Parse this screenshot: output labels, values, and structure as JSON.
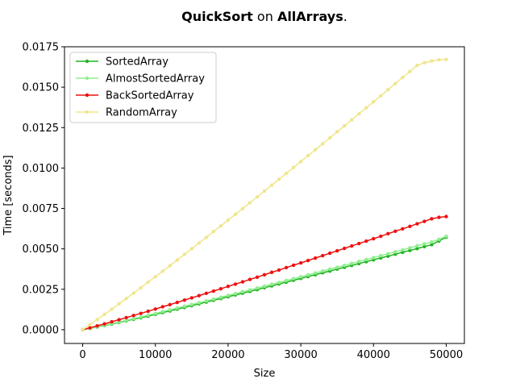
{
  "chart_data": {
    "type": "line",
    "title": {
      "parts": [
        {
          "text": "QuickSort",
          "bold": true
        },
        {
          "text": " on ",
          "bold": false
        },
        {
          "text": "AllArrays",
          "bold": true
        },
        {
          "text": ".",
          "bold": false
        }
      ]
    },
    "xlabel": "Size",
    "ylabel": "Time [seconds]",
    "xlim": [
      -2500,
      52500
    ],
    "ylim": [
      -0.00085,
      0.0175
    ],
    "xticks": [
      0,
      10000,
      20000,
      30000,
      40000,
      50000
    ],
    "xtick_labels": [
      "0",
      "10000",
      "20000",
      "30000",
      "40000",
      "50000"
    ],
    "yticks": [
      0.0,
      0.0025,
      0.005,
      0.0075,
      0.01,
      0.0125,
      0.015,
      0.0175
    ],
    "ytick_labels": [
      "0.0000",
      "0.0025",
      "0.0050",
      "0.0075",
      "0.0100",
      "0.0125",
      "0.0150",
      "0.0175"
    ],
    "grid": false,
    "legend_position": "top-left",
    "x": [
      0,
      1000,
      2000,
      3000,
      4000,
      5000,
      6000,
      7000,
      8000,
      9000,
      10000,
      11000,
      12000,
      13000,
      14000,
      15000,
      16000,
      17000,
      18000,
      19000,
      20000,
      21000,
      22000,
      23000,
      24000,
      25000,
      26000,
      27000,
      28000,
      29000,
      30000,
      31000,
      32000,
      33000,
      34000,
      35000,
      36000,
      37000,
      38000,
      39000,
      40000,
      41000,
      42000,
      43000,
      44000,
      45000,
      46000,
      47000,
      48000,
      49000,
      50000
    ],
    "series": [
      {
        "name": "SortedArray",
        "color": "#22b422",
        "values": [
          0.0,
          8e-05,
          0.00017,
          0.00026,
          0.00035,
          0.00045,
          0.00055,
          0.00065,
          0.00074,
          0.00084,
          0.00095,
          0.00106,
          0.00116,
          0.00127,
          0.00138,
          0.00149,
          0.0016,
          0.00171,
          0.00182,
          0.00193,
          0.00204,
          0.00215,
          0.00226,
          0.00237,
          0.00248,
          0.0026,
          0.00271,
          0.00283,
          0.00294,
          0.00306,
          0.00317,
          0.00329,
          0.0034,
          0.00352,
          0.00363,
          0.00375,
          0.00386,
          0.00398,
          0.00409,
          0.00421,
          0.00432,
          0.00444,
          0.00455,
          0.00467,
          0.00479,
          0.0049,
          0.00502,
          0.00514,
          0.00526,
          0.00549,
          0.00572
        ]
      },
      {
        "name": "AlmostSortedArray",
        "color": "#90ee90",
        "values": [
          0.0,
          9e-05,
          0.00018,
          0.00028,
          0.00038,
          0.00048,
          0.00058,
          0.00069,
          0.00079,
          0.0009,
          0.001,
          0.00112,
          0.00123,
          0.00134,
          0.00145,
          0.00156,
          0.00167,
          0.00178,
          0.00189,
          0.00201,
          0.00212,
          0.00223,
          0.00235,
          0.00246,
          0.00258,
          0.00269,
          0.00281,
          0.00292,
          0.00304,
          0.00316,
          0.00327,
          0.00339,
          0.00351,
          0.00363,
          0.00375,
          0.00386,
          0.00398,
          0.0041,
          0.00422,
          0.00434,
          0.00446,
          0.00458,
          0.0047,
          0.00482,
          0.00494,
          0.00506,
          0.00519,
          0.00531,
          0.00543,
          0.00559,
          0.00578
        ]
      },
      {
        "name": "BackSortedArray",
        "color": "#ee1111",
        "values": [
          0.0,
          0.00012,
          0.00024,
          0.00036,
          0.00049,
          0.00062,
          0.00075,
          0.00088,
          0.00101,
          0.00114,
          0.00128,
          0.00142,
          0.00155,
          0.00169,
          0.00183,
          0.00197,
          0.00211,
          0.00225,
          0.00239,
          0.00253,
          0.00268,
          0.00282,
          0.00296,
          0.00311,
          0.00325,
          0.0034,
          0.00355,
          0.00369,
          0.00384,
          0.00399,
          0.00413,
          0.00428,
          0.00443,
          0.00458,
          0.00473,
          0.00488,
          0.00503,
          0.00518,
          0.00533,
          0.00548,
          0.00563,
          0.00578,
          0.00594,
          0.00609,
          0.00624,
          0.00639,
          0.00655,
          0.0067,
          0.00686,
          0.00695,
          0.007
        ]
      },
      {
        "name": "RandomArray",
        "color": "#f0e68c",
        "values": [
          0.0,
          0.00031,
          0.00063,
          0.00095,
          0.00127,
          0.0016,
          0.00193,
          0.00226,
          0.0026,
          0.00294,
          0.00328,
          0.00362,
          0.00396,
          0.00431,
          0.00466,
          0.00501,
          0.00536,
          0.00571,
          0.00607,
          0.00642,
          0.00678,
          0.00714,
          0.00749,
          0.00785,
          0.00821,
          0.00858,
          0.00894,
          0.0093,
          0.00967,
          0.01003,
          0.0104,
          0.01077,
          0.01113,
          0.0115,
          0.01187,
          0.01224,
          0.01261,
          0.01298,
          0.01335,
          0.01372,
          0.0141,
          0.01447,
          0.01485,
          0.01522,
          0.0156,
          0.01597,
          0.01635,
          0.01651,
          0.01662,
          0.0167,
          0.01672
        ]
      }
    ]
  }
}
